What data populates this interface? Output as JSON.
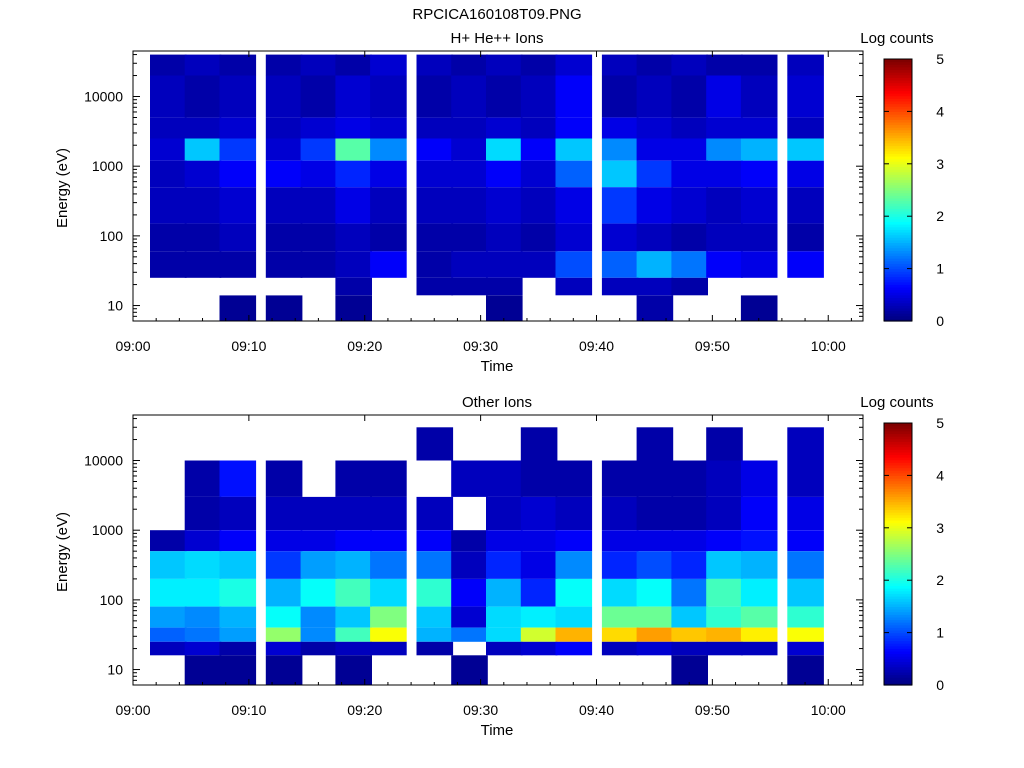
{
  "figure": {
    "title": "RPCICA160108T09.PNG"
  },
  "colorbar": {
    "label": "Log counts",
    "ticks": [
      "0",
      "1",
      "2",
      "3",
      "4",
      "5"
    ],
    "colormap": [
      "#000080",
      "#0000ff",
      "#00ffff",
      "#ffff00",
      "#ff0000",
      "#800000"
    ]
  },
  "chart_data": [
    {
      "type": "heatmap",
      "title": "H+ He++ Ions",
      "xlabel": "Time",
      "ylabel": "Energy (eV)",
      "xlim": [
        "09:00",
        "10:03"
      ],
      "ylim": [
        6,
        45000
      ],
      "yscale": "log",
      "xticks": [
        "09:00",
        "09:10",
        "09:20",
        "09:30",
        "09:40",
        "09:50",
        "10:00"
      ],
      "yticks": [
        "10",
        "100",
        "1000",
        "10000"
      ],
      "colorbar_label": "Log counts",
      "clim": [
        0,
        5
      ],
      "columns": [
        "09:03",
        "09:06",
        "09:09",
        "09:13",
        "09:16",
        "09:19",
        "09:22",
        "09:26",
        "09:29",
        "09:32",
        "09:35",
        "09:38",
        "09:42",
        "09:45",
        "09:48",
        "09:51",
        "09:54",
        "09:58"
      ],
      "energy_bands_eV": [
        {
          "band": "40000-20000",
          "log_counts": [
            0.2,
            0.3,
            0.2,
            0.2,
            0.3,
            0.2,
            0.4,
            0.3,
            0.2,
            0.3,
            0.2,
            0.4,
            0.3,
            0.2,
            0.3,
            0.2,
            0.2,
            0.3
          ]
        },
        {
          "band": "20000-5000",
          "log_counts": [
            0.3,
            0.2,
            0.3,
            0.3,
            0.2,
            0.4,
            0.3,
            0.2,
            0.3,
            0.2,
            0.3,
            0.6,
            0.2,
            0.3,
            0.2,
            0.5,
            0.3,
            0.4
          ]
        },
        {
          "band": "5000-2500",
          "log_counts": [
            0.3,
            0.3,
            0.4,
            0.3,
            0.4,
            0.5,
            0.4,
            0.3,
            0.3,
            0.4,
            0.3,
            0.6,
            0.5,
            0.4,
            0.3,
            0.4,
            0.4,
            0.3
          ]
        },
        {
          "band": "2500-1200",
          "log_counts": [
            0.4,
            1.6,
            0.9,
            0.4,
            0.9,
            2.3,
            1.3,
            0.6,
            0.4,
            1.7,
            0.6,
            1.6,
            1.3,
            0.5,
            0.5,
            1.3,
            1.5,
            1.6
          ]
        },
        {
          "band": "1200-500",
          "log_counts": [
            0.3,
            0.4,
            0.6,
            0.6,
            0.5,
            0.8,
            0.5,
            0.4,
            0.4,
            0.6,
            0.4,
            1.1,
            1.6,
            0.9,
            0.5,
            0.5,
            0.6,
            0.5
          ]
        },
        {
          "band": "500-150",
          "log_counts": [
            0.3,
            0.3,
            0.4,
            0.3,
            0.3,
            0.5,
            0.3,
            0.3,
            0.3,
            0.4,
            0.3,
            0.5,
            0.9,
            0.5,
            0.4,
            0.3,
            0.4,
            0.3
          ]
        },
        {
          "band": "150-60",
          "log_counts": [
            0.2,
            0.2,
            0.3,
            0.2,
            0.2,
            0.3,
            0.2,
            0.2,
            0.2,
            0.3,
            0.2,
            0.4,
            0.4,
            0.3,
            0.2,
            0.3,
            0.3,
            0.2
          ]
        },
        {
          "band": "60-25",
          "log_counts": [
            0.2,
            0.2,
            0.2,
            0.2,
            0.2,
            0.3,
            0.6,
            0.2,
            0.3,
            0.3,
            0.3,
            1.0,
            1.1,
            1.5,
            1.2,
            0.6,
            0.5,
            0.6
          ]
        },
        {
          "band": "25-14",
          "log_counts": [
            0,
            0,
            0,
            0,
            0,
            0.2,
            0,
            0.2,
            0.2,
            0.2,
            0,
            0.3,
            0.3,
            0.3,
            0.2,
            0,
            0,
            0
          ]
        },
        {
          "band": "14-6",
          "log_counts": [
            0,
            0,
            0.1,
            0.1,
            0,
            0.1,
            0,
            0,
            0,
            0.1,
            0,
            0,
            0,
            0.2,
            0,
            0,
            0.1,
            0
          ]
        }
      ]
    },
    {
      "type": "heatmap",
      "title": "Other Ions",
      "xlabel": "Time",
      "ylabel": "Energy (eV)",
      "xlim": [
        "09:00",
        "10:03"
      ],
      "ylim": [
        6,
        45000
      ],
      "yscale": "log",
      "xticks": [
        "09:00",
        "09:10",
        "09:20",
        "09:30",
        "09:40",
        "09:50",
        "10:00"
      ],
      "yticks": [
        "10",
        "100",
        "1000",
        "10000"
      ],
      "colorbar_label": "Log counts",
      "clim": [
        0,
        5
      ],
      "columns": [
        "09:03",
        "09:06",
        "09:09",
        "09:13",
        "09:16",
        "09:19",
        "09:22",
        "09:26",
        "09:29",
        "09:32",
        "09:35",
        "09:38",
        "09:42",
        "09:45",
        "09:48",
        "09:51",
        "09:54",
        "09:58"
      ],
      "energy_bands_eV": [
        {
          "band": "30000-10000",
          "log_counts": [
            0,
            0,
            0,
            0,
            0,
            0,
            0,
            0.2,
            0,
            0,
            0.2,
            0,
            0,
            0.2,
            0,
            0.2,
            0,
            0.3
          ]
        },
        {
          "band": "10000-3000",
          "log_counts": [
            0,
            0.2,
            0.7,
            0.2,
            0,
            0.2,
            0.2,
            0,
            0.3,
            0.3,
            0.2,
            0.2,
            0.2,
            0.2,
            0.2,
            0.3,
            0.5,
            0.3
          ]
        },
        {
          "band": "3000-1000",
          "log_counts": [
            0,
            0.2,
            0.3,
            0.3,
            0.3,
            0.3,
            0.3,
            0.3,
            0,
            0.3,
            0.4,
            0.3,
            0.3,
            0.2,
            0.2,
            0.3,
            0.6,
            0.5
          ]
        },
        {
          "band": "1000-500",
          "log_counts": [
            0.2,
            0.4,
            0.6,
            0.5,
            0.5,
            0.6,
            0.6,
            0.6,
            0.2,
            0.5,
            0.5,
            0.6,
            0.5,
            0.5,
            0.5,
            0.6,
            0.7,
            0.6
          ]
        },
        {
          "band": "500-200",
          "log_counts": [
            1.6,
            1.7,
            1.6,
            0.9,
            1.4,
            1.5,
            1.2,
            1.2,
            0.3,
            0.8,
            0.5,
            1.3,
            0.8,
            1.0,
            0.8,
            1.6,
            1.5,
            1.2
          ]
        },
        {
          "band": "200-80",
          "log_counts": [
            1.8,
            1.8,
            2.0,
            1.5,
            1.9,
            2.2,
            1.7,
            2.1,
            0.6,
            1.5,
            0.8,
            1.9,
            1.7,
            1.9,
            1.2,
            2.2,
            1.8,
            1.6
          ]
        },
        {
          "band": "80-40",
          "log_counts": [
            1.4,
            1.3,
            1.5,
            1.9,
            1.3,
            1.6,
            2.5,
            1.6,
            0.4,
            1.7,
            1.8,
            1.7,
            2.4,
            2.4,
            1.6,
            2.1,
            2.3,
            2.1
          ]
        },
        {
          "band": "40-25",
          "log_counts": [
            1.1,
            1.2,
            1.4,
            2.6,
            1.3,
            2.2,
            3.1,
            1.5,
            1.2,
            1.7,
            2.9,
            3.5,
            3.3,
            3.6,
            3.4,
            3.5,
            3.2,
            3.1
          ]
        },
        {
          "band": "25-16",
          "log_counts": [
            0.3,
            0.4,
            0.2,
            0.4,
            0.2,
            0.3,
            0.3,
            0.2,
            0,
            0.3,
            0.4,
            0.6,
            0.3,
            0.4,
            0.3,
            0.3,
            0.3,
            0.4
          ]
        },
        {
          "band": "16-6",
          "log_counts": [
            0,
            0.1,
            0.1,
            0.1,
            0,
            0.1,
            0,
            0,
            0.1,
            0,
            0,
            0,
            0,
            0,
            0.1,
            0,
            0,
            0.1
          ]
        }
      ]
    }
  ]
}
